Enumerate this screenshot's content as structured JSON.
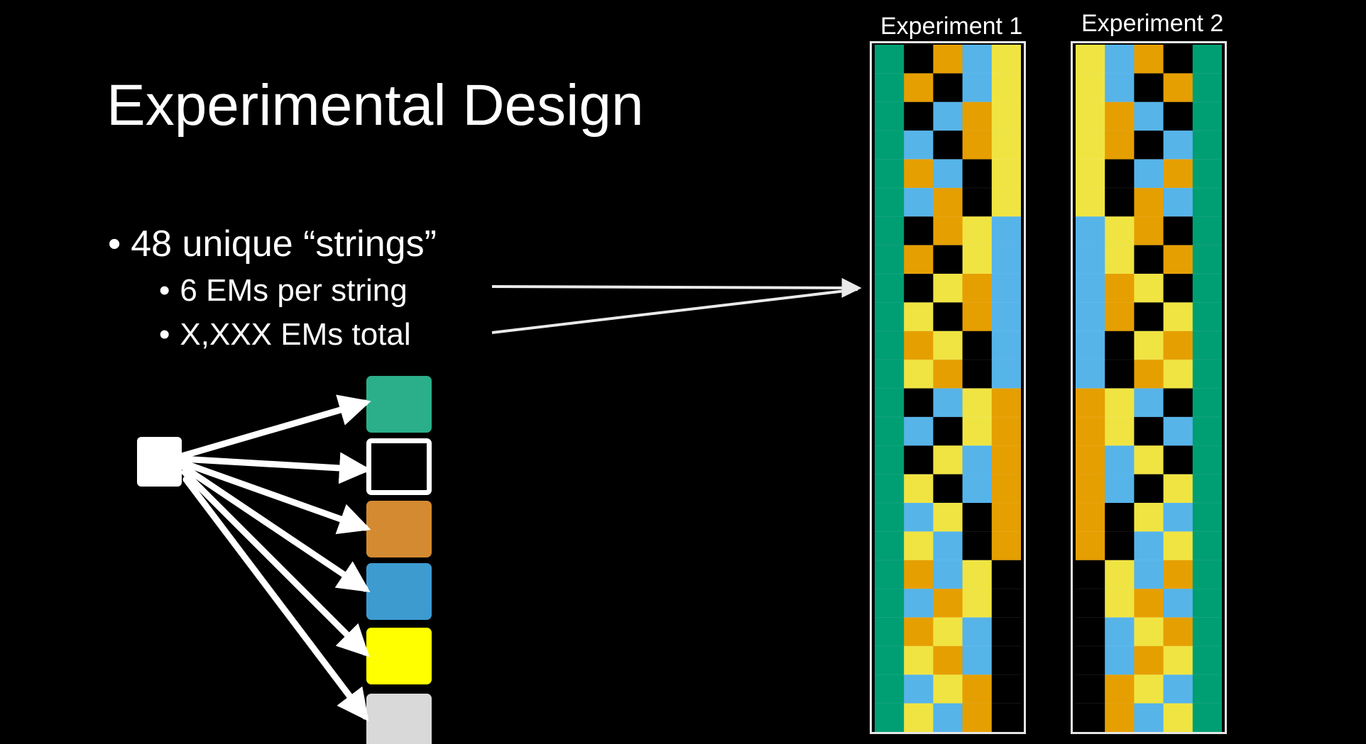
{
  "slide": {
    "title": "Experimental Design",
    "bullets": {
      "main": "48 unique “strings”",
      "sub1": "6 EMs per string",
      "sub2": "X,XXX EMs total",
      "marker": "•"
    }
  },
  "experiments": [
    {
      "label": "Experiment 1"
    },
    {
      "label": "Experiment 2"
    }
  ],
  "legend_colors": [
    "#2aaf8a",
    "#000000",
    "#d48a30",
    "#3d9bd0",
    "#ffff00",
    "#d9d9d9"
  ],
  "grid_colors": {
    "G": "#009e73",
    "K": "#000000",
    "O": "#e69f00",
    "B": "#56b4e9",
    "Y": "#f0e442"
  },
  "grid1": [
    "GKOBY",
    "GOKBY",
    "GKBOY",
    "GBKOY",
    "GOBKY",
    "GBOKY",
    "GKOYB",
    "GOKYB",
    "GKYOB",
    "GYKOB",
    "GOYKB",
    "GYOKB",
    "GKBYO",
    "GBKYO",
    "GKYBO",
    "GYKBO",
    "GBYKO",
    "GYBKO",
    "GOBYK",
    "GBOYK",
    "GOYBK",
    "GYOBK",
    "GBYOK",
    "GYBOK"
  ],
  "grid2": [
    "YBOKG",
    "YBKOG",
    "YOBKG",
    "YOKBG",
    "YKBOG",
    "YKOBG",
    "BYOKG",
    "BYKOG",
    "BOYKG",
    "BOKYG",
    "BKYOG",
    "BKOYG",
    "OYBKG",
    "OYKBG",
    "OBYKG",
    "OBKYG",
    "OKYBG",
    "OKBYG",
    "KYBOG",
    "KYOBG",
    "KBYOG",
    "KBOYG",
    "KOYBG",
    "KOBYG"
  ]
}
